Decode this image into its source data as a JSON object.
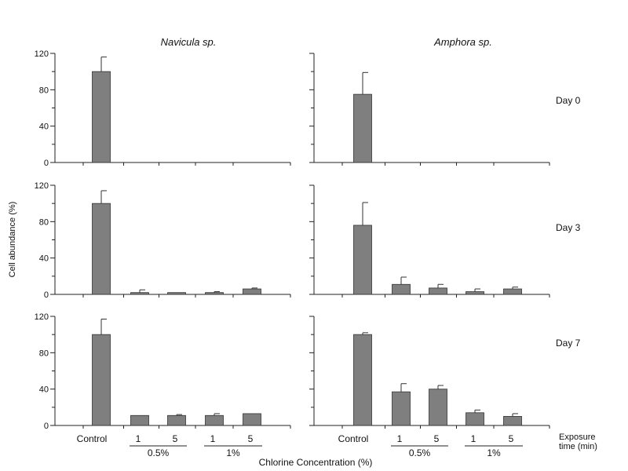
{
  "figure": {
    "ylabel": "Cell abundance (%)",
    "xlabel": "Chlorine Concentration (%)",
    "exposure_label_line1": "Exposure",
    "exposure_label_line2": "time (min)",
    "bar_color": "#7f7f7f",
    "axis_color": "#222222"
  },
  "chart_data": [
    {
      "type": "bar",
      "species": "Navicula sp.",
      "day": "Day 0",
      "categories": [
        "Control",
        "1",
        "5",
        "1",
        "5"
      ],
      "groups": [
        "0.5%",
        "1%"
      ],
      "values": [
        100,
        0,
        0,
        0,
        0
      ],
      "errors": [
        16,
        0,
        0,
        0,
        0
      ],
      "ylim": [
        0,
        120
      ],
      "yticks": [
        "0",
        "40",
        "80",
        "120"
      ]
    },
    {
      "type": "bar",
      "species": "Amphora sp.",
      "day": "Day 0",
      "categories": [
        "Control",
        "1",
        "5",
        "1",
        "5"
      ],
      "groups": [
        "0.5%",
        "1%"
      ],
      "values": [
        75,
        0,
        0,
        0,
        0
      ],
      "errors": [
        24,
        0,
        0,
        0,
        0
      ],
      "ylim": [
        0,
        120
      ],
      "yticks": []
    },
    {
      "type": "bar",
      "species": "Navicula sp.",
      "day": "Day 3",
      "categories": [
        "Control",
        "1",
        "5",
        "1",
        "5"
      ],
      "groups": [
        "0.5%",
        "1%"
      ],
      "values": [
        100,
        2,
        2,
        2,
        6
      ],
      "errors": [
        14,
        3,
        0,
        1,
        1
      ],
      "ylim": [
        0,
        120
      ],
      "yticks": [
        "0",
        "40",
        "80",
        "120"
      ]
    },
    {
      "type": "bar",
      "species": "Amphora sp.",
      "day": "Day 3",
      "categories": [
        "Control",
        "1",
        "5",
        "1",
        "5"
      ],
      "groups": [
        "0.5%",
        "1%"
      ],
      "values": [
        76,
        11,
        7,
        3,
        6
      ],
      "errors": [
        25,
        8,
        4,
        3,
        2
      ],
      "ylim": [
        0,
        120
      ],
      "yticks": []
    },
    {
      "type": "bar",
      "species": "Navicula sp.",
      "day": "Day 7",
      "categories": [
        "Control",
        "1",
        "5",
        "1",
        "5"
      ],
      "groups": [
        "0.5%",
        "1%"
      ],
      "values": [
        100,
        11,
        11,
        11,
        13
      ],
      "errors": [
        17,
        0,
        1,
        2,
        0
      ],
      "ylim": [
        0,
        120
      ],
      "yticks": [
        "0",
        "40",
        "80",
        "120"
      ]
    },
    {
      "type": "bar",
      "species": "Amphora sp.",
      "day": "Day 7",
      "categories": [
        "Control",
        "1",
        "5",
        "1",
        "5"
      ],
      "groups": [
        "0.5%",
        "1%"
      ],
      "values": [
        100,
        37,
        40,
        14,
        10
      ],
      "errors": [
        2,
        9,
        4,
        3,
        3
      ],
      "ylim": [
        0,
        120
      ],
      "yticks": []
    }
  ]
}
